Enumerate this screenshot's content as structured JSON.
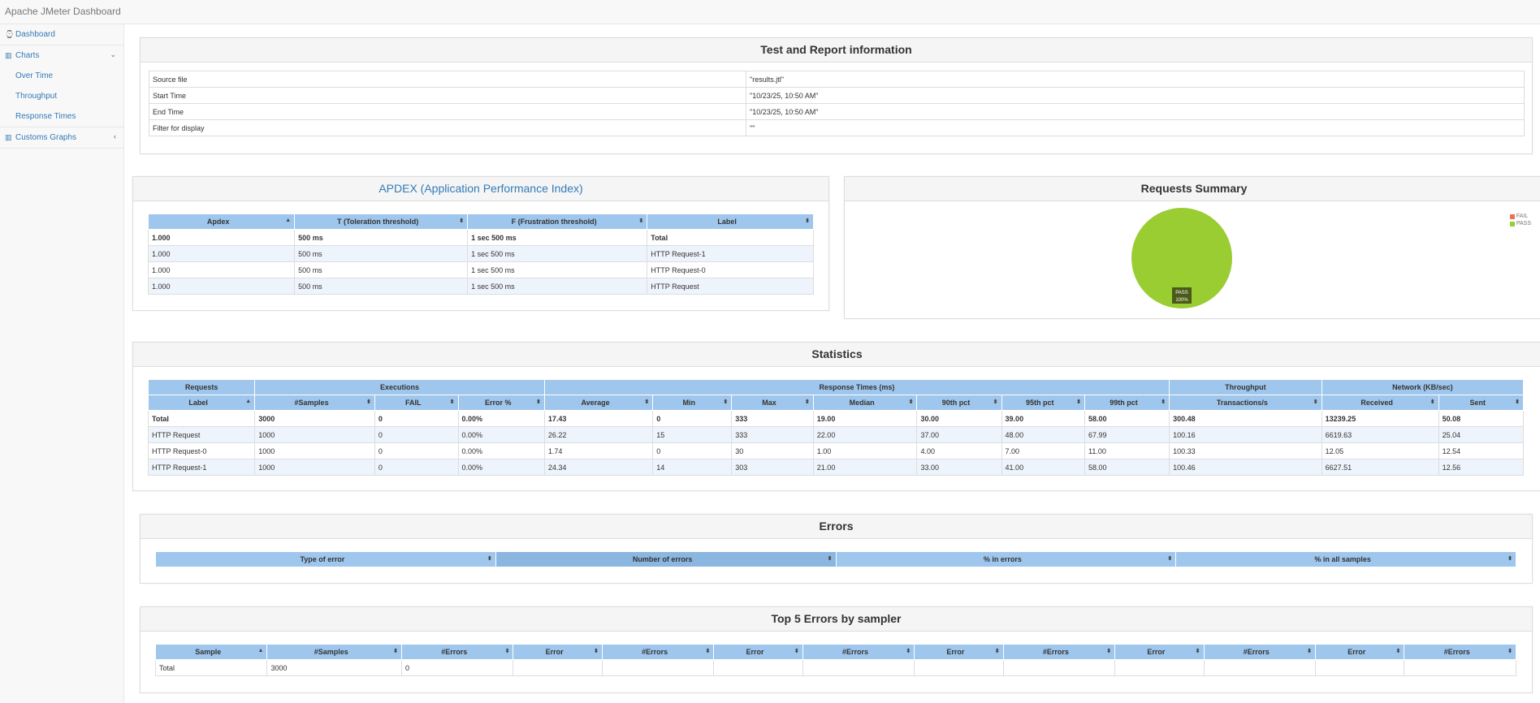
{
  "app": {
    "title": "Apache JMeter Dashboard"
  },
  "nav": {
    "dashboard": "Dashboard",
    "charts": "Charts",
    "chart_items": [
      "Over Time",
      "Throughput",
      "Response Times"
    ],
    "custom": "Customs Graphs",
    "icons": {
      "dashboard": "dashboard-icon",
      "charts": "bar-chart-icon",
      "custom": "bar-chart-icon"
    }
  },
  "report_info": {
    "title": "Test and Report information",
    "rows": [
      {
        "label": "Source file",
        "value": "\"results.jtl\""
      },
      {
        "label": "Start Time",
        "value": "\"10/23/25, 10:50 AM\""
      },
      {
        "label": "End Time",
        "value": "\"10/23/25, 10:50 AM\""
      },
      {
        "label": "Filter for display",
        "value": "\"\""
      }
    ]
  },
  "apdex": {
    "title": "APDEX (Application Performance Index)",
    "columns": [
      "Apdex",
      "T (Toleration threshold)",
      "F (Frustration threshold)",
      "Label"
    ],
    "rows": [
      [
        "1.000",
        "500 ms",
        "1 sec 500 ms",
        "Total"
      ],
      [
        "1.000",
        "500 ms",
        "1 sec 500 ms",
        "HTTP Request-1"
      ],
      [
        "1.000",
        "500 ms",
        "1 sec 500 ms",
        "HTTP Request-0"
      ],
      [
        "1.000",
        "500 ms",
        "1 sec 500 ms",
        "HTTP Request"
      ]
    ]
  },
  "summary": {
    "title": "Requests Summary",
    "legend": [
      "FAIL",
      "PASS"
    ],
    "colors": {
      "FAIL": "#e7735c",
      "PASS": "#9acd32"
    },
    "slice_label": "PASS",
    "slice_pct": "100%"
  },
  "chart_data": {
    "type": "pie",
    "title": "Requests Summary",
    "categories": [
      "FAIL",
      "PASS"
    ],
    "values": [
      0,
      100
    ]
  },
  "statistics": {
    "title": "Statistics",
    "groups": [
      "Requests",
      "Executions",
      "Response Times (ms)",
      "Throughput",
      "Network (KB/sec)"
    ],
    "columns": [
      "Label",
      "#Samples",
      "FAIL",
      "Error %",
      "Average",
      "Min",
      "Max",
      "Median",
      "90th pct",
      "95th pct",
      "99th pct",
      "Transactions/s",
      "Received",
      "Sent"
    ],
    "rows": [
      [
        "Total",
        "3000",
        "0",
        "0.00%",
        "17.43",
        "0",
        "333",
        "19.00",
        "30.00",
        "39.00",
        "58.00",
        "300.48",
        "13239.25",
        "50.08"
      ],
      [
        "HTTP Request",
        "1000",
        "0",
        "0.00%",
        "26.22",
        "15",
        "333",
        "22.00",
        "37.00",
        "48.00",
        "67.99",
        "100.16",
        "6619.63",
        "25.04"
      ],
      [
        "HTTP Request-0",
        "1000",
        "0",
        "0.00%",
        "1.74",
        "0",
        "30",
        "1.00",
        "4.00",
        "7.00",
        "11.00",
        "100.33",
        "12.05",
        "12.54"
      ],
      [
        "HTTP Request-1",
        "1000",
        "0",
        "0.00%",
        "24.34",
        "14",
        "303",
        "21.00",
        "33.00",
        "41.00",
        "58.00",
        "100.46",
        "6627.51",
        "12.56"
      ]
    ]
  },
  "errors": {
    "title": "Errors",
    "columns": [
      "Type of error",
      "Number of errors",
      "% in errors",
      "% in all samples"
    ]
  },
  "top5": {
    "title": "Top 5 Errors by sampler",
    "columns": [
      "Sample",
      "#Samples",
      "#Errors",
      "Error",
      "#Errors",
      "Error",
      "#Errors",
      "Error",
      "#Errors",
      "Error",
      "#Errors",
      "Error",
      "#Errors"
    ],
    "rows": [
      [
        "Total",
        "3000",
        "0",
        "",
        "",
        "",
        "",
        "",
        "",
        "",
        "",
        "",
        ""
      ]
    ]
  }
}
